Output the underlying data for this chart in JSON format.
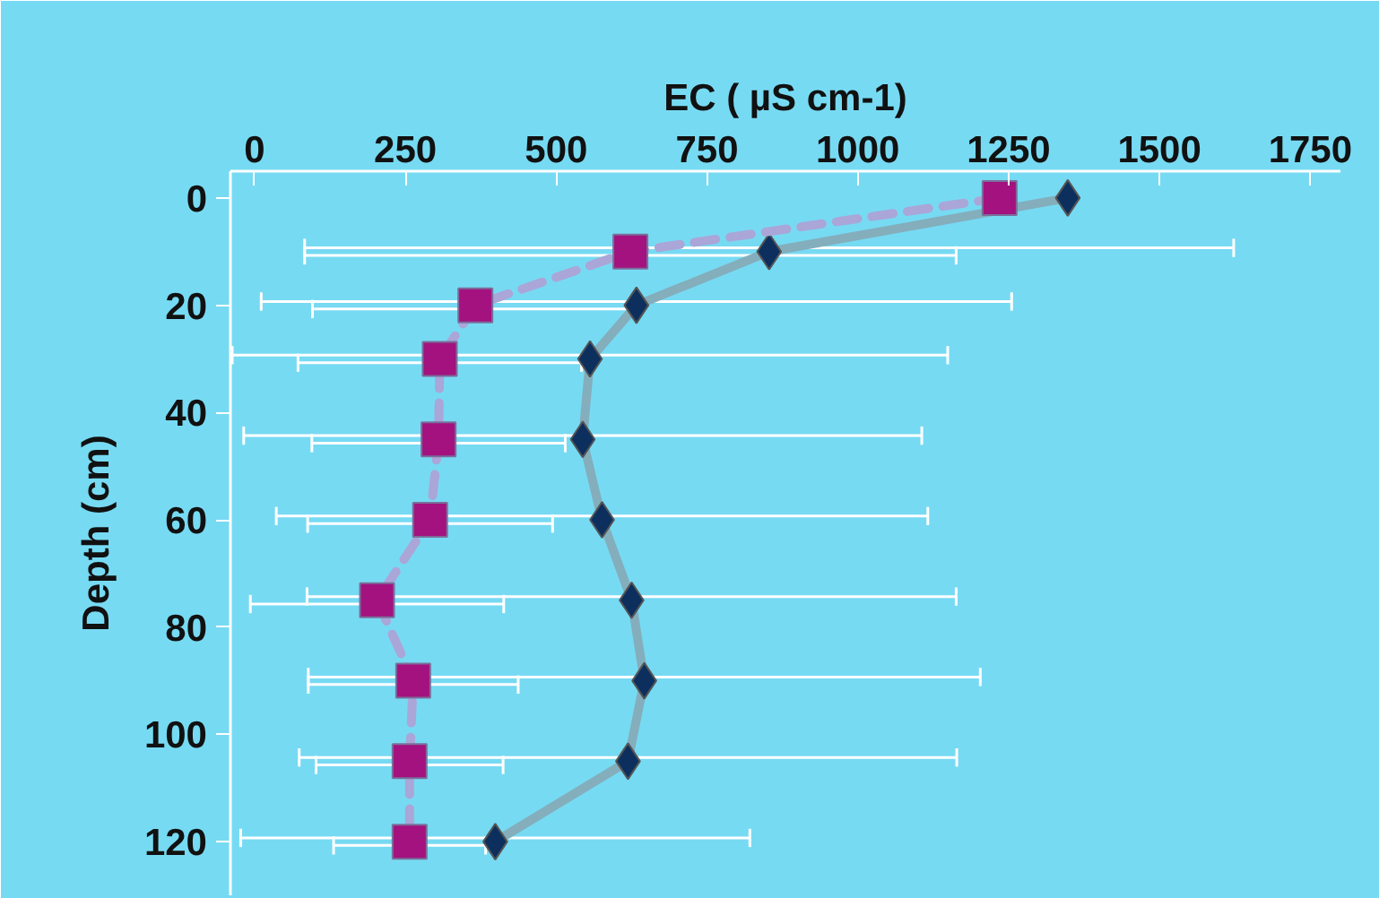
{
  "chart_data": {
    "type": "line",
    "orientation": "horizontal",
    "xlabel": "EC ( µS cm-1)",
    "ylabel": "Depth (cm)",
    "x": [
      0,
      10,
      20,
      30,
      45,
      60,
      75,
      90,
      105,
      120
    ],
    "xlim": [
      -40,
      1800
    ],
    "xticks": [
      0,
      250,
      500,
      750,
      1000,
      1250,
      1500,
      1750
    ],
    "ylim": [
      130,
      -5
    ],
    "yticks": [
      0,
      20,
      40,
      60,
      80,
      100,
      120
    ],
    "grid": false,
    "series": [
      {
        "color": "#0d2f5e",
        "marker": "diamond",
        "line_style": "solid",
        "values": [
          1348,
          853,
          633,
          556,
          544,
          576,
          625,
          646,
          619,
          399
        ],
        "errors": [
          null,
          770,
          622,
          593,
          562,
          540,
          538,
          557,
          545,
          422
        ]
      },
      {
        "color": "#a3127f",
        "marker": "square",
        "line_style": "dashed",
        "values": [
          1235,
          623,
          366,
          307,
          305,
          291,
          203,
          263,
          257,
          257
        ],
        "errors": [
          null,
          540,
          270,
          235,
          210,
          203,
          210,
          174,
          155,
          126
        ]
      }
    ]
  }
}
